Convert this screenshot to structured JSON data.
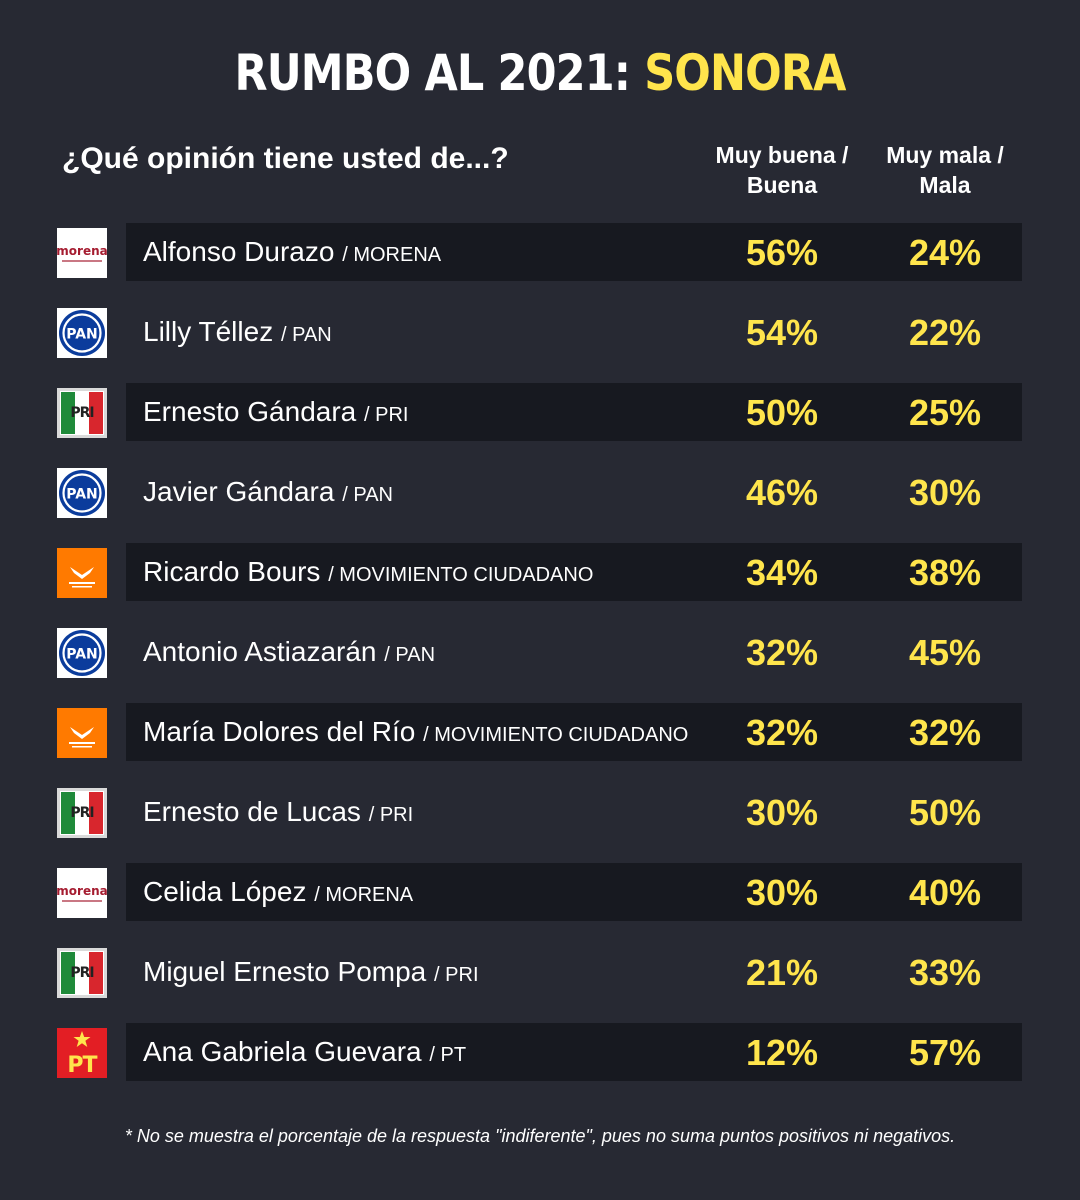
{
  "header": {
    "title_main": "RUMBO AL 2021: ",
    "title_accent": "SONORA",
    "question": "¿Qué opinión tiene usted de...?",
    "col1_line1": "Muy buena /",
    "col1_line2": "Buena",
    "col2_line1": "Muy mala /",
    "col2_line2": "Mala"
  },
  "colors": {
    "background": "#272933",
    "band": "#171920",
    "accent": "#ffe54c",
    "pan": "#0b3c9c",
    "pri_green": "#1f8a3a",
    "pri_red": "#d8262d",
    "mc_orange": "#ff7a00",
    "pt_red": "#e31e24",
    "morena_red": "#a51c30"
  },
  "chart_data": {
    "type": "table",
    "columns": [
      "Muy buena / Buena",
      "Muy mala / Mala"
    ],
    "rows": [
      {
        "name": "Alfonso Durazo",
        "party": "/ MORENA",
        "logo": "morena",
        "logo_text": "morena",
        "positive": "56%",
        "negative": "24%"
      },
      {
        "name": "Lilly Téllez",
        "party": "/ PAN",
        "logo": "pan",
        "logo_text": "PAN",
        "positive": "54%",
        "negative": "22%"
      },
      {
        "name": "Ernesto Gándara",
        "party": "/ PRI",
        "logo": "pri",
        "logo_text": "PRI",
        "positive": "50%",
        "negative": "25%"
      },
      {
        "name": "Javier Gándara",
        "party": "/ PAN",
        "logo": "pan",
        "logo_text": "PAN",
        "positive": "46%",
        "negative": "30%"
      },
      {
        "name": "Ricardo Bours",
        "party": "/ MOVIMIENTO CIUDADANO",
        "logo": "mc",
        "logo_text": "",
        "positive": "34%",
        "negative": "38%"
      },
      {
        "name": "Antonio Astiazarán",
        "party": "/ PAN",
        "logo": "pan",
        "logo_text": "PAN",
        "positive": "32%",
        "negative": "45%"
      },
      {
        "name": "María Dolores del Río",
        "party": "/ MOVIMIENTO CIUDADANO",
        "logo": "mc",
        "logo_text": "",
        "positive": "32%",
        "negative": "32%"
      },
      {
        "name": "Ernesto de Lucas",
        "party": "/ PRI",
        "logo": "pri",
        "logo_text": "PRI",
        "positive": "30%",
        "negative": "50%"
      },
      {
        "name": "Celida López",
        "party": "/ MORENA",
        "logo": "morena",
        "logo_text": "morena",
        "positive": "30%",
        "negative": "40%"
      },
      {
        "name": "Miguel Ernesto Pompa",
        "party": "/ PRI",
        "logo": "pri",
        "logo_text": "PRI",
        "positive": "21%",
        "negative": "33%"
      },
      {
        "name": "Ana Gabriela Guevara",
        "party": "/ PT",
        "logo": "pt",
        "logo_text": "PT",
        "positive": "12%",
        "negative": "57%"
      }
    ]
  },
  "footnote": "* No se muestra el porcentaje de la respuesta \"indiferente\", pues no suma puntos positivos ni negativos."
}
